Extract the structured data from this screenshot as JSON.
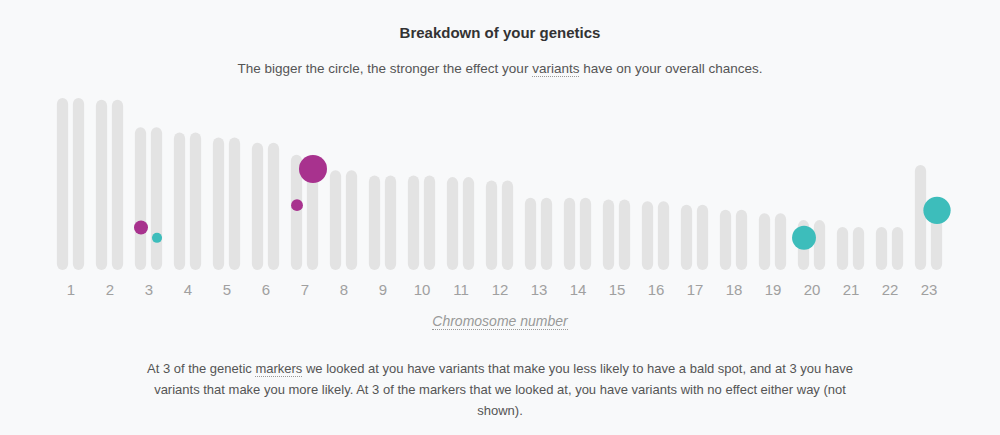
{
  "chart_data": {
    "type": "bubble",
    "title": "Breakdown of your genetics",
    "subtitle": "The bigger the circle, the stronger the effect your variants have on your overall chances.",
    "subtitle_underlined": "variants",
    "xlabel": "Chromosome number",
    "caption": "At 3 of the genetic markers we looked at you have variants that make you less likely to have a bald spot, and at 3 you have variants that make you more likely. At 3 of the markers that we looked at, you have variants with no effect either way (not shown).",
    "caption_underlined": "markers",
    "categories": [
      1,
      2,
      3,
      4,
      5,
      6,
      7,
      8,
      9,
      10,
      11,
      12,
      13,
      14,
      15,
      16,
      17,
      18,
      19,
      20,
      21,
      22,
      23
    ],
    "lengths": [
      [
        100,
        100
      ],
      [
        99,
        99
      ],
      [
        83,
        83
      ],
      [
        80,
        80
      ],
      [
        77,
        77
      ],
      [
        74,
        74
      ],
      [
        67,
        67
      ],
      [
        58,
        58
      ],
      [
        55,
        55
      ],
      [
        55,
        55
      ],
      [
        54,
        54
      ],
      [
        52,
        52
      ],
      [
        42,
        42
      ],
      [
        42,
        42
      ],
      [
        41,
        41
      ],
      [
        40,
        40
      ],
      [
        38,
        38
      ],
      [
        35,
        35
      ],
      [
        33,
        33
      ],
      [
        29,
        29
      ],
      [
        25,
        25
      ],
      [
        25,
        25
      ],
      [
        61,
        41
      ]
    ],
    "ylim": [
      0,
      100
    ],
    "tick_labels": "x",
    "series": [
      {
        "color": "#a8328e",
        "markers": [
          {
            "chromosome": 3,
            "copy": 1,
            "position": 25,
            "size": 0.25
          },
          {
            "chromosome": 7,
            "copy": 2,
            "position": 59,
            "size": 1.0
          },
          {
            "chromosome": 7,
            "copy": 1,
            "position": 38,
            "size": 0.18
          }
        ]
      },
      {
        "color": "#3dbdbb",
        "markers": [
          {
            "chromosome": 3,
            "copy": 2,
            "position": 19,
            "size": 0.13
          },
          {
            "chromosome": 20,
            "copy": 1,
            "position": 19,
            "size": 0.73
          },
          {
            "chromosome": 23,
            "copy": 2,
            "position": 35,
            "size": 0.95
          }
        ]
      }
    ]
  }
}
